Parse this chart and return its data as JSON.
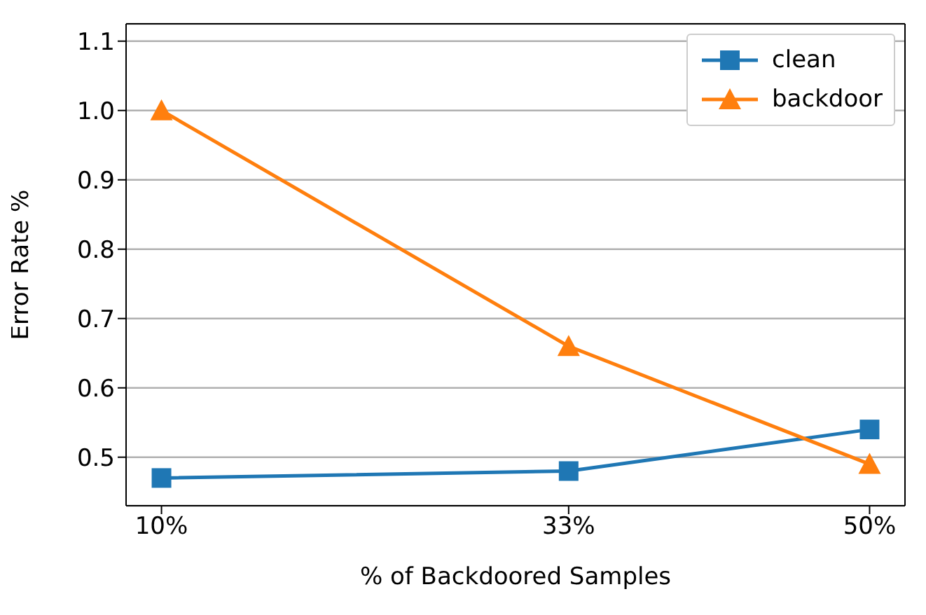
{
  "chart_data": {
    "type": "line",
    "xlabel": "% of Backdoored Samples",
    "ylabel": "Error Rate %",
    "x": [
      10,
      33,
      50
    ],
    "xlim": [
      8,
      52
    ],
    "xticks": [
      {
        "value": 10,
        "label": "10%"
      },
      {
        "value": 33,
        "label": "33%"
      },
      {
        "value": 50,
        "label": "50%"
      }
    ],
    "ylim": [
      0.43,
      1.125
    ],
    "yticks": [
      {
        "value": 0.5,
        "label": "0.5"
      },
      {
        "value": 0.6,
        "label": "0.6"
      },
      {
        "value": 0.7,
        "label": "0.7"
      },
      {
        "value": 0.8,
        "label": "0.8"
      },
      {
        "value": 0.9,
        "label": "0.9"
      },
      {
        "value": 1.0,
        "label": "1.0"
      },
      {
        "value": 1.1,
        "label": "1.1"
      }
    ],
    "grid": "y",
    "legend": "top right",
    "line_style": "solid",
    "series": [
      {
        "name": "clean",
        "color": "#1f77b4",
        "marker": "square",
        "values": [
          0.47,
          0.48,
          0.54
        ]
      },
      {
        "name": "backdoor",
        "color": "#ff7f0e",
        "marker": "triangle",
        "values": [
          1.0,
          0.66,
          0.49
        ]
      }
    ]
  }
}
